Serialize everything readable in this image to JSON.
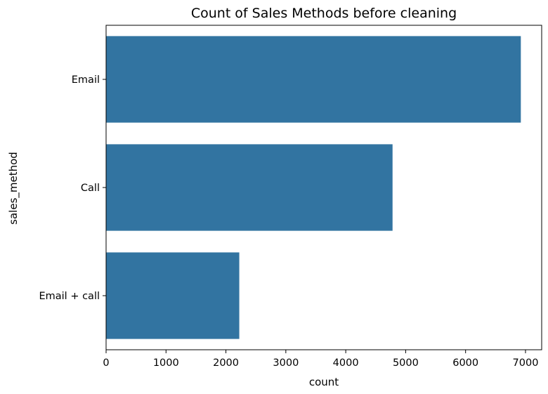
{
  "chart_data": {
    "type": "bar",
    "orientation": "horizontal",
    "title": "Count of Sales Methods before cleaning",
    "xlabel": "count",
    "ylabel": "sales_method",
    "categories": [
      "Email",
      "Call",
      "Email + call"
    ],
    "values": [
      6922,
      4781,
      2223
    ],
    "xlim": [
      0,
      7270
    ],
    "xticks": [
      0,
      1000,
      2000,
      3000,
      4000,
      5000,
      6000,
      7000
    ],
    "grid": false,
    "legend": "none",
    "bar_color": "#3274a1"
  }
}
